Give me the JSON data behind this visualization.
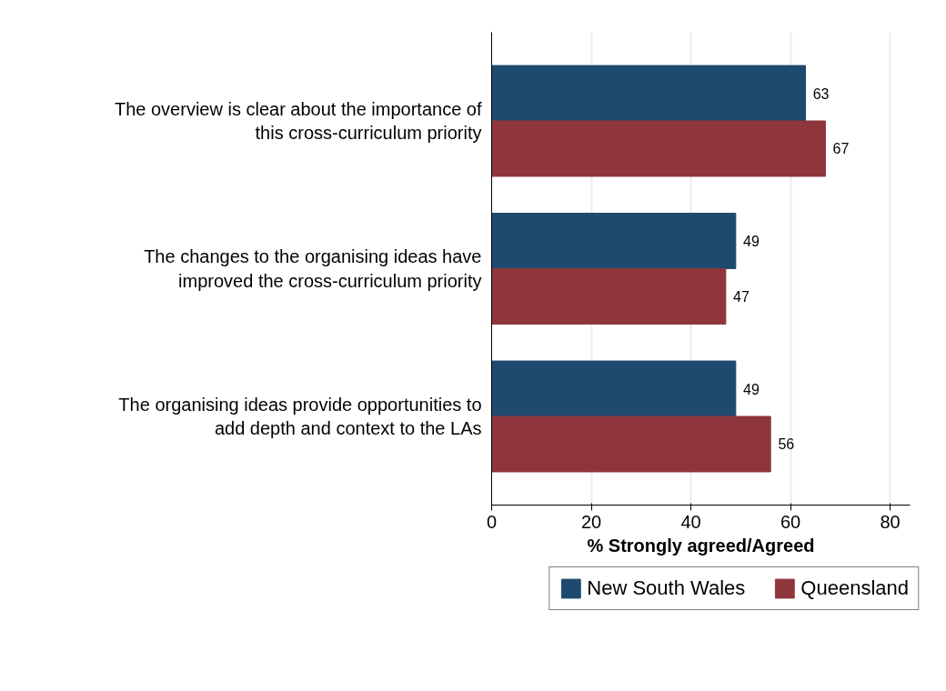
{
  "chart_data": {
    "type": "bar",
    "orientation": "horizontal",
    "xlabel": "% Strongly agreed/Agreed",
    "categories": [
      "The overview is clear about the importance of\nthis cross-curriculum priority",
      "The changes to the organising ideas have\nimproved the cross-curriculum priority",
      "The organising ideas provide opportunities to\nadd depth and context to the LAs"
    ],
    "series": [
      {
        "name": "New South Wales",
        "color": "#1f4a70",
        "values": [
          63,
          49,
          49
        ]
      },
      {
        "name": "Queensland",
        "color": "#8f353c",
        "values": [
          67,
          47,
          56
        ]
      }
    ],
    "xlim": [
      0,
      84
    ],
    "xticks": [
      0,
      20,
      40,
      60,
      80
    ],
    "grid": "x",
    "legend": "bottom",
    "data_labels": true
  }
}
